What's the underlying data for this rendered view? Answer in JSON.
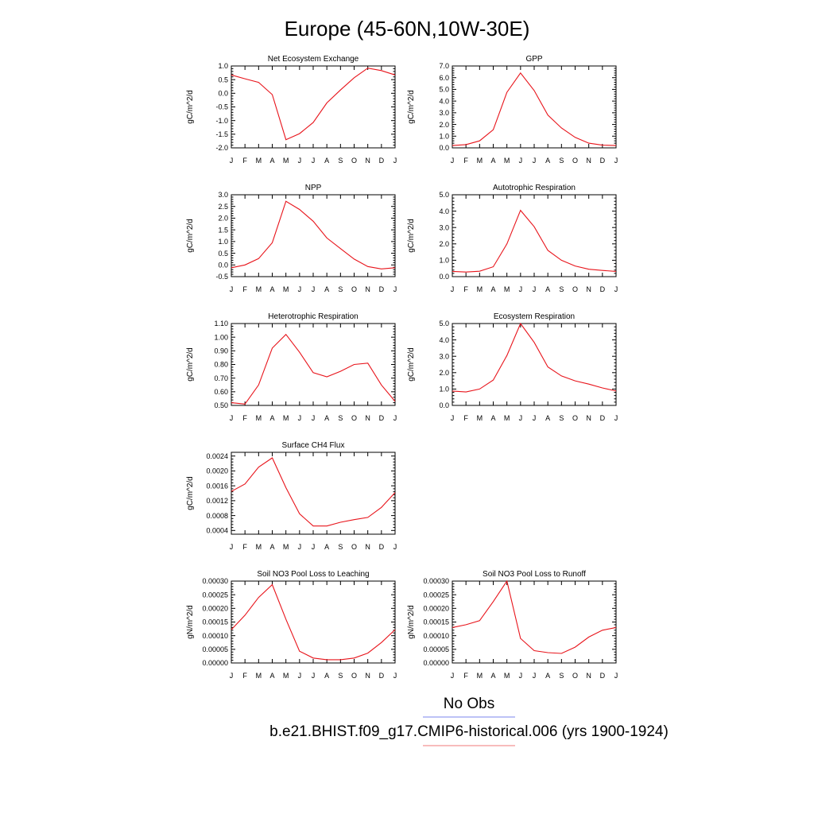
{
  "figure": {
    "title": "Europe (45-60N,10W-30E)",
    "legend": [
      {
        "label": "No Obs",
        "color": "#7b86ee"
      },
      {
        "label": "b.e21.BHIST.f09_g17.CMIP6-historical.006 (yrs 1900-1924)",
        "color": "#f07a7a"
      }
    ],
    "series_color": "#e8141b"
  },
  "chart_data": [
    {
      "type": "line",
      "title": "Net Ecosystem Exchange",
      "ylabel": "gC/m^2/d",
      "x": [
        "J",
        "F",
        "M",
        "A",
        "M",
        "J",
        "J",
        "A",
        "S",
        "O",
        "N",
        "D",
        "J"
      ],
      "ylim": [
        -2.0,
        1.0
      ],
      "yticks": [
        "1.0",
        "0.5",
        "0.0",
        "-0.5",
        "-1.0",
        "-1.5",
        "-2.0"
      ],
      "series": [
        {
          "values": [
            0.67,
            0.53,
            0.4,
            -0.05,
            -1.7,
            -1.48,
            -1.07,
            -0.35,
            0.12,
            0.57,
            0.92,
            0.83,
            0.67
          ]
        }
      ]
    },
    {
      "type": "line",
      "title": "GPP",
      "ylabel": "gC/m^2/d",
      "x": [
        "J",
        "F",
        "M",
        "A",
        "M",
        "J",
        "J",
        "A",
        "S",
        "O",
        "N",
        "D",
        "J"
      ],
      "ylim": [
        0.0,
        7.0
      ],
      "yticks": [
        "7.0",
        "6.0",
        "5.0",
        "4.0",
        "3.0",
        "2.0",
        "1.0",
        "0.0"
      ],
      "series": [
        {
          "values": [
            0.2,
            0.28,
            0.6,
            1.55,
            4.75,
            6.4,
            4.9,
            2.8,
            1.7,
            0.9,
            0.4,
            0.23,
            0.2
          ]
        }
      ]
    },
    {
      "type": "line",
      "title": "NPP",
      "ylabel": "gC/m^2/d",
      "x": [
        "J",
        "F",
        "M",
        "A",
        "M",
        "J",
        "J",
        "A",
        "S",
        "O",
        "N",
        "D",
        "J"
      ],
      "ylim": [
        -0.5,
        3.0
      ],
      "yticks": [
        "3.0",
        "2.5",
        "2.0",
        "1.5",
        "1.0",
        "0.5",
        "0.0",
        "-0.5"
      ],
      "series": [
        {
          "values": [
            -0.12,
            0.0,
            0.27,
            0.95,
            2.72,
            2.37,
            1.87,
            1.15,
            0.7,
            0.25,
            -0.07,
            -0.17,
            -0.12
          ]
        }
      ]
    },
    {
      "type": "line",
      "title": "Autotrophic Respiration",
      "ylabel": "gC/m^2/d",
      "x": [
        "J",
        "F",
        "M",
        "A",
        "M",
        "J",
        "J",
        "A",
        "S",
        "O",
        "N",
        "D",
        "J"
      ],
      "ylim": [
        0.0,
        5.0
      ],
      "yticks": [
        "5.0",
        "4.0",
        "3.0",
        "2.0",
        "1.0",
        "0.0"
      ],
      "series": [
        {
          "values": [
            0.32,
            0.28,
            0.33,
            0.6,
            2.0,
            4.05,
            3.05,
            1.6,
            1.0,
            0.65,
            0.45,
            0.38,
            0.32
          ]
        }
      ]
    },
    {
      "type": "line",
      "title": "Heterotrophic Respiration",
      "ylabel": "gC/m^2/d",
      "x": [
        "J",
        "F",
        "M",
        "A",
        "M",
        "J",
        "J",
        "A",
        "S",
        "O",
        "N",
        "D",
        "J"
      ],
      "ylim": [
        0.5,
        1.1
      ],
      "yticks": [
        "1.10",
        "1.00",
        "0.90",
        "0.80",
        "0.70",
        "0.60",
        "0.50"
      ],
      "series": [
        {
          "values": [
            0.52,
            0.51,
            0.65,
            0.92,
            1.02,
            0.89,
            0.74,
            0.71,
            0.75,
            0.8,
            0.81,
            0.65,
            0.53
          ]
        }
      ]
    },
    {
      "type": "line",
      "title": "Ecosystem Respiration",
      "ylabel": "gC/m^2/d",
      "x": [
        "J",
        "F",
        "M",
        "A",
        "M",
        "J",
        "J",
        "A",
        "S",
        "O",
        "N",
        "D",
        "J"
      ],
      "ylim": [
        0.0,
        5.0
      ],
      "yticks": [
        "5.0",
        "4.0",
        "3.0",
        "2.0",
        "1.0",
        "0.0"
      ],
      "series": [
        {
          "values": [
            0.88,
            0.82,
            1.0,
            1.55,
            3.05,
            5.0,
            3.85,
            2.35,
            1.8,
            1.5,
            1.3,
            1.07,
            0.88
          ]
        }
      ]
    },
    {
      "type": "line",
      "title": "Surface CH4 Flux",
      "ylabel": "gC/m^2/d",
      "x": [
        "J",
        "F",
        "M",
        "A",
        "M",
        "J",
        "J",
        "A",
        "S",
        "O",
        "N",
        "D",
        "J"
      ],
      "ylim": [
        0.0003,
        0.0025
      ],
      "yticks": [
        "0.0024",
        "0.0020",
        "0.0016",
        "0.0012",
        "0.0008",
        "0.0004"
      ],
      "series": [
        {
          "values": [
            0.00145,
            0.00165,
            0.0021,
            0.00235,
            0.00155,
            0.00085,
            0.00052,
            0.00052,
            0.00062,
            0.00069,
            0.00075,
            0.00102,
            0.00142
          ]
        }
      ]
    },
    {
      "type": "line",
      "title": "Soil NO3 Pool Loss to Leaching",
      "ylabel": "gN/m^2/d",
      "x": [
        "J",
        "F",
        "M",
        "A",
        "M",
        "J",
        "J",
        "A",
        "S",
        "O",
        "N",
        "D",
        "J"
      ],
      "ylim": [
        0.0,
        0.0003
      ],
      "yticks": [
        "0.00030",
        "0.00025",
        "0.00020",
        "0.00015",
        "0.00010",
        "0.00005",
        "0.00000"
      ],
      "series": [
        {
          "values": [
            0.000122,
            0.000175,
            0.00024,
            0.000287,
            0.00016,
            4.3e-05,
            1.8e-05,
            1.2e-05,
            1.2e-05,
            1.8e-05,
            3.6e-05,
            7.5e-05,
            0.000122
          ]
        }
      ]
    },
    {
      "type": "line",
      "title": "Soil NO3 Pool Loss to Runoff",
      "ylabel": "gN/m^2/d",
      "x": [
        "J",
        "F",
        "M",
        "A",
        "M",
        "J",
        "J",
        "A",
        "S",
        "O",
        "N",
        "D",
        "J"
      ],
      "ylim": [
        0.0,
        0.0003
      ],
      "yticks": [
        "0.00030",
        "0.00025",
        "0.00020",
        "0.00015",
        "0.00010",
        "0.00005",
        "0.00000"
      ],
      "series": [
        {
          "values": [
            0.00013,
            0.00014,
            0.000155,
            0.000225,
            0.0003,
            9e-05,
            4.5e-05,
            3.8e-05,
            3.5e-05,
            5.8e-05,
            9.5e-05,
            0.00012,
            0.00013
          ]
        }
      ]
    }
  ]
}
